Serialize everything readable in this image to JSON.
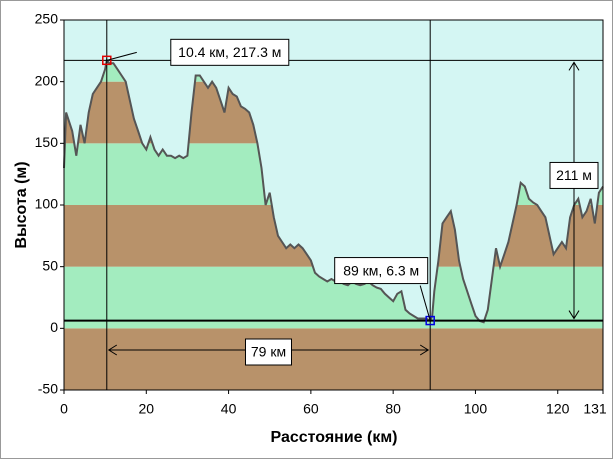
{
  "chart_data": {
    "type": "area",
    "xlabel": "Расстояние  (км)",
    "ylabel": "Высота  (м)",
    "xlim": [
      0,
      131
    ],
    "ylim": [
      -50,
      250
    ],
    "xticks": [
      0,
      20,
      40,
      60,
      80,
      100,
      120,
      131
    ],
    "yticks": [
      -50,
      0,
      50,
      100,
      150,
      200,
      250
    ],
    "line_color": "#555555",
    "background": "#d4f6f3",
    "band_colors": [
      "#b8926a",
      "#a3ecbf"
    ],
    "x": [
      0,
      0.5,
      2,
      3,
      4,
      5,
      6,
      7,
      8,
      9,
      10,
      10.4,
      11,
      12,
      13,
      14,
      15,
      16,
      17,
      18,
      19,
      20,
      21,
      22,
      23,
      24,
      25,
      26,
      27,
      28,
      29,
      30,
      31,
      32,
      33,
      34,
      35,
      36,
      37,
      38,
      39,
      40,
      41,
      42,
      43,
      44,
      45,
      46,
      47,
      48,
      49,
      50,
      51,
      52,
      53,
      54,
      55,
      56,
      57,
      58,
      59,
      60,
      61,
      62,
      63,
      64,
      65,
      66,
      67,
      68,
      69,
      70,
      71,
      72,
      73,
      74,
      75,
      76,
      77,
      78,
      79,
      80,
      81,
      82,
      83,
      84,
      85,
      86,
      87,
      88,
      89,
      89.5,
      90,
      91,
      92,
      93,
      94,
      95,
      96,
      97,
      98,
      99,
      100,
      101,
      102,
      103,
      104,
      105,
      106,
      107,
      108,
      109,
      110,
      111,
      112,
      113,
      114,
      115,
      116,
      117,
      118,
      119,
      120,
      121,
      122,
      123,
      124,
      125,
      126,
      127,
      128,
      129,
      130,
      131
    ],
    "values": [
      130,
      175,
      160,
      140,
      165,
      150,
      175,
      190,
      195,
      200,
      210,
      217.3,
      215,
      215,
      210,
      205,
      200,
      185,
      170,
      160,
      150,
      145,
      155,
      145,
      140,
      145,
      140,
      140,
      138,
      140,
      138,
      140,
      175,
      205,
      205,
      200,
      195,
      200,
      195,
      185,
      175,
      195,
      190,
      188,
      180,
      178,
      175,
      165,
      150,
      130,
      100,
      110,
      90,
      75,
      70,
      65,
      68,
      65,
      68,
      65,
      60,
      55,
      45,
      42,
      40,
      38,
      40,
      38,
      38,
      36,
      35,
      38,
      36,
      35,
      36,
      38,
      35,
      33,
      32,
      28,
      25,
      22,
      28,
      30,
      15,
      12,
      10,
      8,
      8,
      8,
      6.3,
      10,
      30,
      55,
      85,
      90,
      95,
      80,
      55,
      40,
      30,
      20,
      10,
      6,
      5,
      15,
      40,
      65,
      50,
      60,
      70,
      85,
      100,
      118,
      115,
      105,
      102,
      100,
      95,
      90,
      75,
      60,
      65,
      70,
      65,
      90,
      100,
      105,
      90,
      95,
      105,
      85,
      110,
      115
    ],
    "markers": [
      {
        "x": 10.4,
        "y": 217.3,
        "label": "10.4 км, 217.3 м",
        "color": "#e00000"
      },
      {
        "x": 89,
        "y": 6.3,
        "label": "89 км, 6.3 м",
        "color": "#0000e0"
      }
    ],
    "measures": [
      {
        "label": "79 км"
      },
      {
        "label": "211 м"
      }
    ]
  }
}
